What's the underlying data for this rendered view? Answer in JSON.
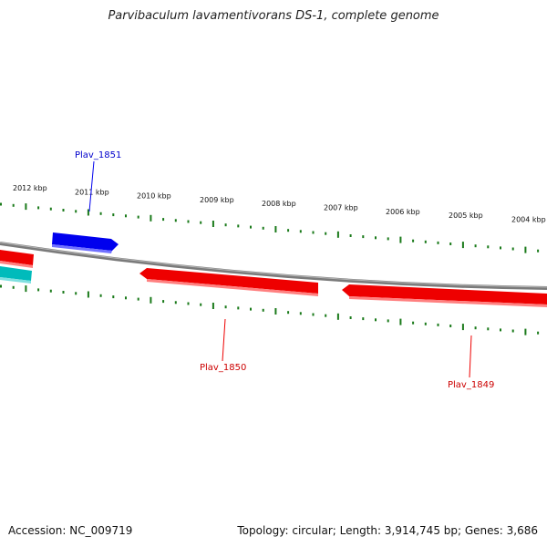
{
  "title": "Parvibaculum lavamentivorans DS-1, complete genome",
  "footer": {
    "accession": "Accession: NC_009719",
    "summary": "Topology: circular; Length: 3,914,745 bp; Genes: 3,686"
  },
  "scale_labels": [
    "2012 kbp",
    "2011 kbp",
    "2010 kbp",
    "2009 kbp",
    "2008 kbp",
    "2007 kbp",
    "2006 kbp",
    "2005 kbp",
    "2004 kbp"
  ],
  "genes": [
    {
      "name": "Plav_1851",
      "color": "#0000ee",
      "strand": "forward"
    },
    {
      "name": "Plav_1850",
      "color": "#ee0000",
      "strand": "reverse"
    },
    {
      "name": "Plav_1849",
      "color": "#ee0000",
      "strand": "reverse"
    }
  ],
  "colors": {
    "backbone": "#808080",
    "ticks": "#1a7a1a",
    "forward_gene": "#0000ee",
    "reverse_gene": "#ee0000",
    "other_gene": "#00bbbb"
  }
}
